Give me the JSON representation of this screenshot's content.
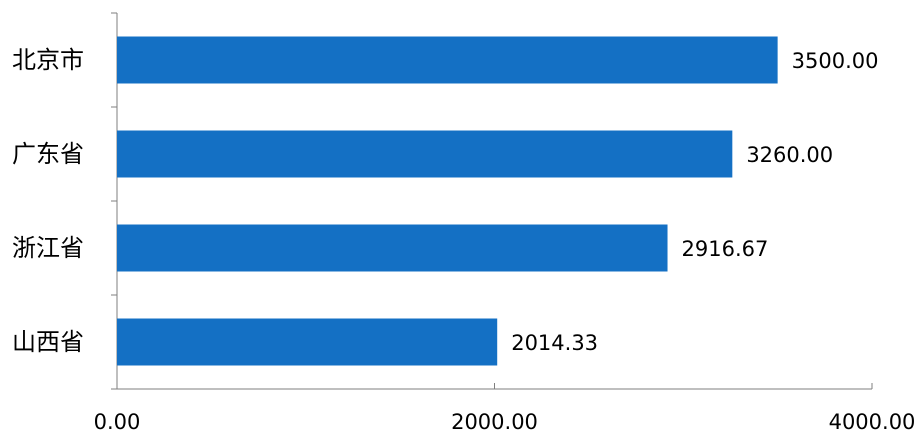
{
  "chart_data": {
    "type": "bar",
    "orientation": "horizontal",
    "categories": [
      "北京市",
      "广东省",
      "浙江省",
      "山西省"
    ],
    "values": [
      3500.0,
      3260.0,
      2916.67,
      2014.33
    ],
    "value_labels": [
      "3500.00",
      "3260.00",
      "2916.67",
      "2014.33"
    ],
    "x_ticks": [
      0,
      2000,
      4000
    ],
    "x_tick_labels": [
      "0.00",
      "2000.00",
      "4000.00"
    ],
    "xlim": [
      0,
      4000
    ],
    "title": "",
    "xlabel": "",
    "ylabel": "",
    "grid": false,
    "legend": "none",
    "bar_color": "#1470C4",
    "axis_color": "#7f7f7f",
    "text_color": "#000000"
  }
}
